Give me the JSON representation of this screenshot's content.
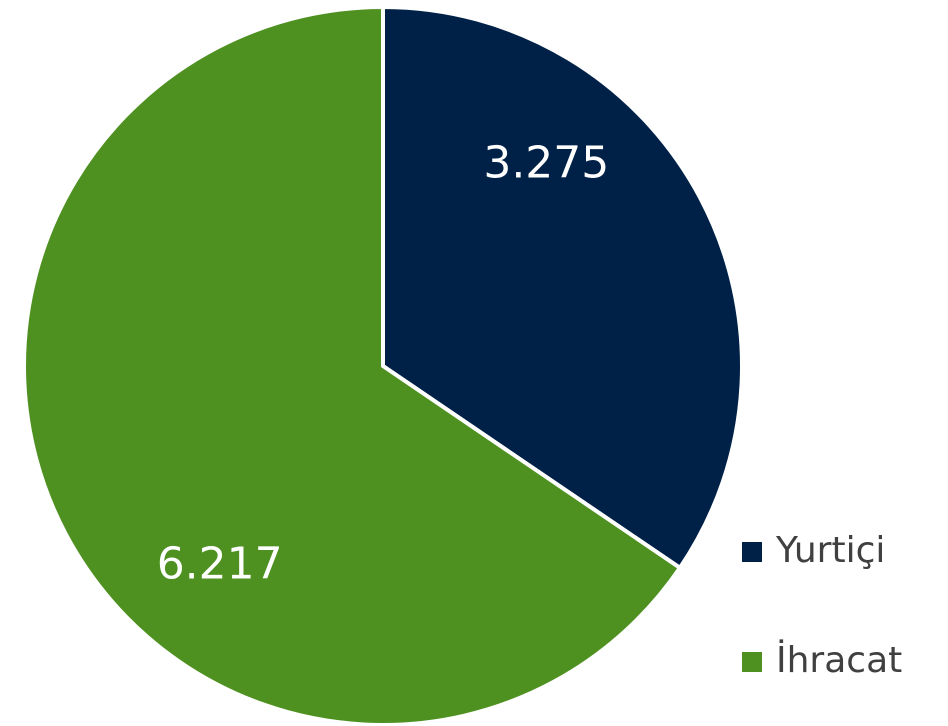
{
  "chart_data": {
    "type": "pie",
    "categories": [
      "Yurtiçi",
      "İhracat"
    ],
    "values": [
      3275,
      6217
    ],
    "value_labels": [
      "3.275",
      "6.217"
    ],
    "colors": [
      "#002147",
      "#4e9121"
    ],
    "legend": "right"
  }
}
